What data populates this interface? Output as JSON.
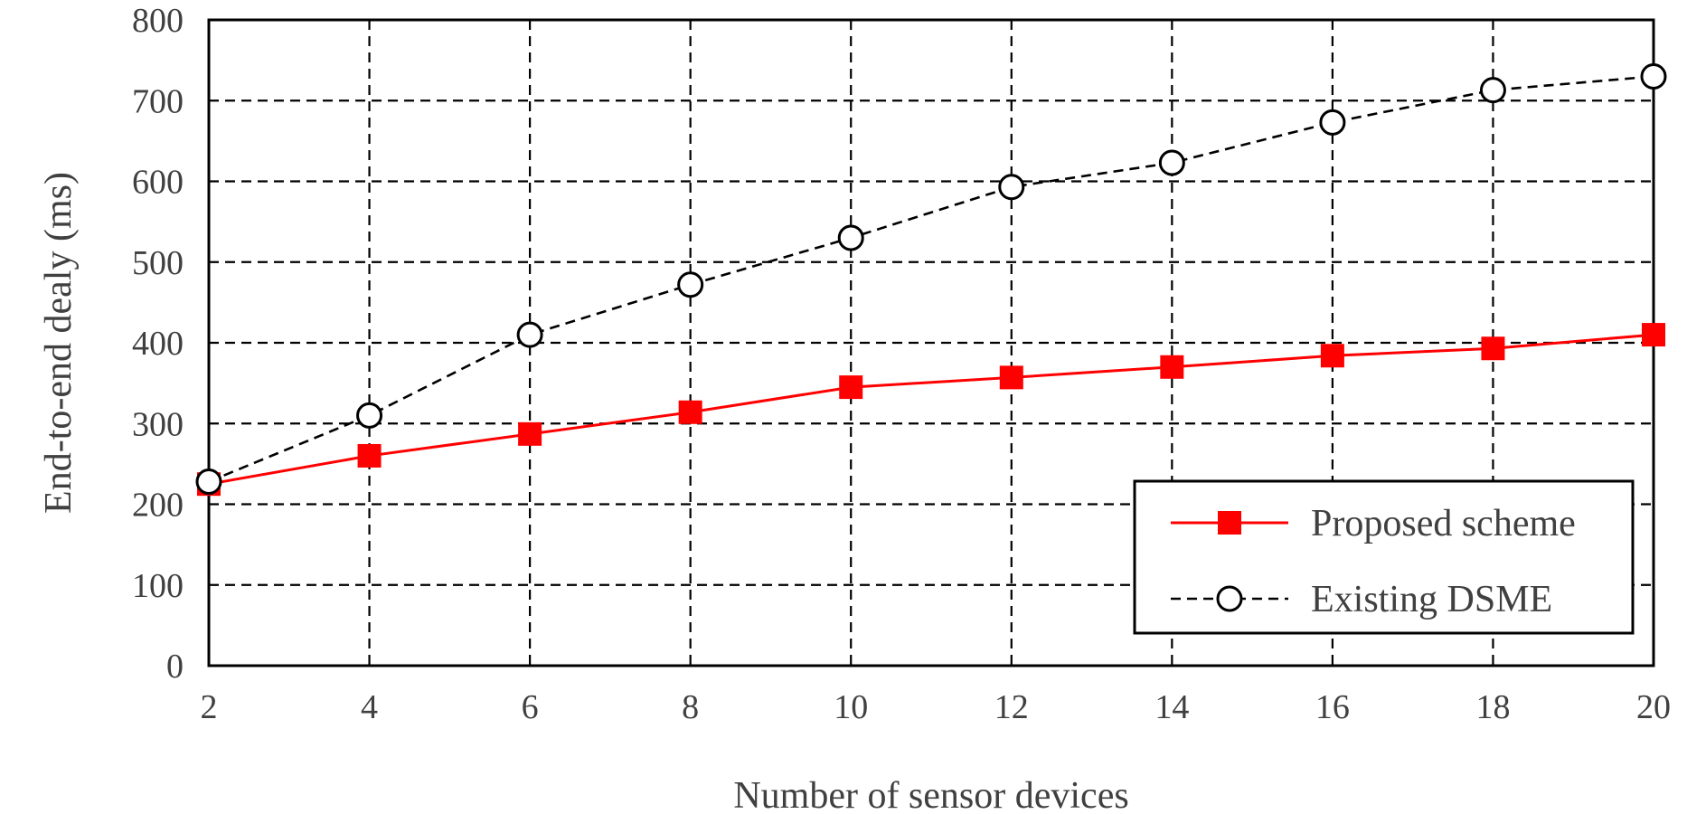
{
  "chart_data": {
    "type": "line",
    "x": [
      2,
      4,
      6,
      8,
      10,
      12,
      14,
      16,
      18,
      20
    ],
    "xlabel": "Number of sensor devices",
    "ylabel": "End-to-end dealy (ms)",
    "xlim": [
      2,
      20
    ],
    "ylim": [
      0,
      800
    ],
    "xticks": [
      "2",
      "4",
      "6",
      "8",
      "10",
      "12",
      "14",
      "16",
      "18",
      "20"
    ],
    "yticks": [
      "0",
      "100",
      "200",
      "300",
      "400",
      "500",
      "600",
      "700",
      "800"
    ],
    "grid": true,
    "legend_position": "bottom-right",
    "series": [
      {
        "name": "Proposed scheme",
        "values": [
          225,
          260,
          287,
          314,
          345,
          357,
          370,
          384,
          393,
          410
        ],
        "color": "#ff0000",
        "line": "solid",
        "marker": "filled-square"
      },
      {
        "name": "Existing DSME",
        "values": [
          228,
          310,
          410,
          472,
          530,
          593,
          623,
          673,
          713,
          730
        ],
        "color": "#000000",
        "line": "dashed",
        "marker": "hollow-circle"
      }
    ]
  }
}
